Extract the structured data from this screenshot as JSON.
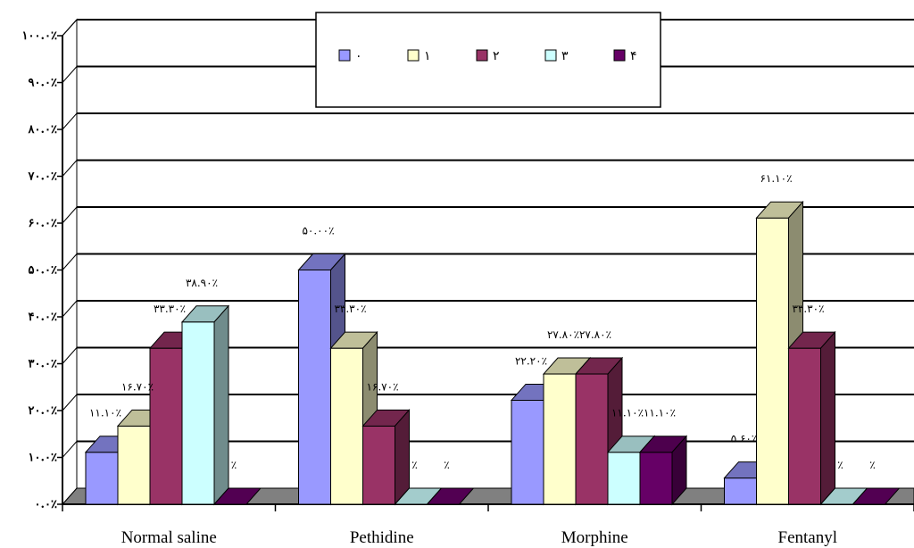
{
  "chart_data": {
    "type": "bar",
    "categories": [
      "Normal saline",
      "Pethidine",
      "Morphine",
      "Fentanyl"
    ],
    "series": [
      {
        "name": "۰",
        "values": [
          11.1,
          50.0,
          22.2,
          5.6
        ],
        "labels": [
          "۱۱.۱۰٪",
          "۵۰.۰۰٪",
          "۲۲.۲۰٪",
          "۵.۶۰٪"
        ],
        "color": "#9999ff"
      },
      {
        "name": "۱",
        "values": [
          16.7,
          33.3,
          27.8,
          61.1
        ],
        "labels": [
          "۱۶.۷۰٪",
          "۳۳.۳۰٪",
          "۲۷.۸۰٪",
          "۶۱.۱۰٪"
        ],
        "color": "#ffffcc"
      },
      {
        "name": "۲",
        "values": [
          33.3,
          16.7,
          27.8,
          33.3
        ],
        "labels": [
          "۳۳.۳۰٪",
          "۱۶.۷۰٪",
          "۲۷.۸۰٪",
          "۳۳.۳۰٪"
        ],
        "color": "#993366"
      },
      {
        "name": "۳",
        "values": [
          38.9,
          0,
          11.1,
          0
        ],
        "labels": [
          "۳۸.۹۰٪",
          "٪",
          "۱۱.۱۰٪",
          "٪"
        ],
        "color": "#ccffff"
      },
      {
        "name": "۴",
        "values": [
          0,
          0,
          11.1,
          0
        ],
        "labels": [
          "٪",
          "٪",
          "۱۱.۱۰٪",
          "٪"
        ],
        "color": "#660066"
      }
    ],
    "yticks": [
      "۰.۰٪",
      "۱۰.۰٪",
      "۲۰.۰٪",
      "۳۰.۰٪",
      "۴۰.۰٪",
      "۵۰.۰٪",
      "۶۰.۰٪",
      "۷۰.۰٪",
      "۸۰.۰٪",
      "۹۰.۰٪",
      "۱۰۰.۰٪"
    ],
    "ylim": [
      0,
      100
    ],
    "title": "",
    "xlabel": "",
    "ylabel": "",
    "grid": true,
    "legend_position": "top-center",
    "floor_color": "#808080"
  }
}
